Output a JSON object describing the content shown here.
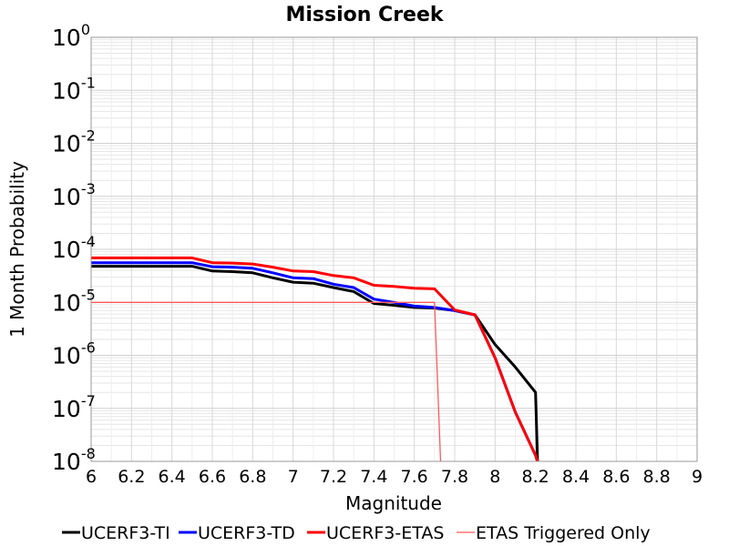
{
  "chart_data": {
    "type": "line",
    "title": "Mission Creek",
    "xlabel": "Magnitude",
    "ylabel": "1 Month Probability",
    "xlim": [
      6,
      9
    ],
    "ylim": [
      1e-08,
      1
    ],
    "yscale": "log",
    "grid": true,
    "legend_position": "bottom",
    "x_ticks": [
      "6",
      "6.2",
      "6.4",
      "6.6",
      "6.8",
      "7",
      "7.2",
      "7.4",
      "7.6",
      "7.8",
      "8",
      "8.2",
      "8.4",
      "8.6",
      "8.8",
      "9"
    ],
    "y_tick_base": "10",
    "y_tick_exponents": [
      "0",
      "-1",
      "-2",
      "-3",
      "-4",
      "-5",
      "-6",
      "-7",
      "-8"
    ],
    "series": [
      {
        "name": "UCERF3-TI",
        "color": "#000000",
        "x": [
          6.0,
          6.1,
          6.2,
          6.3,
          6.4,
          6.5,
          6.6,
          6.7,
          6.8,
          6.9,
          7.0,
          7.1,
          7.2,
          7.3,
          7.4,
          7.5,
          7.6,
          7.7,
          7.8,
          7.9,
          8.0,
          8.1,
          8.2,
          8.21
        ],
        "y": [
          4.8e-05,
          4.8e-05,
          4.8e-05,
          4.8e-05,
          4.8e-05,
          4.8e-05,
          3.9e-05,
          3.8e-05,
          3.6e-05,
          2.9e-05,
          2.4e-05,
          2.3e-05,
          1.9e-05,
          1.6e-05,
          9.5e-06,
          8.8e-06,
          8e-06,
          7.8e-06,
          7e-06,
          5.8e-06,
          1.6e-06,
          6e-07,
          2e-07,
          1e-08
        ]
      },
      {
        "name": "UCERF3-TD",
        "color": "#0000ff",
        "x": [
          6.0,
          6.1,
          6.2,
          6.3,
          6.4,
          6.5,
          6.6,
          6.7,
          6.8,
          6.9,
          7.0,
          7.1,
          7.2,
          7.3,
          7.4,
          7.5,
          7.6,
          7.7,
          7.8,
          7.9,
          8.0,
          8.1,
          8.2,
          8.21
        ],
        "y": [
          5.6e-05,
          5.6e-05,
          5.6e-05,
          5.6e-05,
          5.6e-05,
          5.6e-05,
          4.7e-05,
          4.6e-05,
          4.4e-05,
          3.6e-05,
          2.9e-05,
          2.8e-05,
          2.2e-05,
          1.9e-05,
          1.15e-05,
          1e-05,
          8.5e-06,
          8e-06,
          7e-06,
          5.8e-06,
          9e-07,
          8.5e-08,
          1.3e-08,
          1e-08
        ]
      },
      {
        "name": "UCERF3-ETAS",
        "color": "#ff0000",
        "x": [
          6.0,
          6.1,
          6.2,
          6.3,
          6.4,
          6.5,
          6.6,
          6.7,
          6.8,
          6.9,
          7.0,
          7.1,
          7.2,
          7.3,
          7.4,
          7.5,
          7.6,
          7.7,
          7.8,
          7.9,
          8.0,
          8.1,
          8.2,
          8.21
        ],
        "y": [
          6.9e-05,
          6.9e-05,
          6.9e-05,
          6.9e-05,
          6.9e-05,
          6.9e-05,
          5.6e-05,
          5.5e-05,
          5.3e-05,
          4.6e-05,
          3.9e-05,
          3.8e-05,
          3.2e-05,
          2.9e-05,
          2.1e-05,
          2e-05,
          1.85e-05,
          1.8e-05,
          7.2e-06,
          5.8e-06,
          9e-07,
          8.5e-08,
          1.3e-08,
          1e-08
        ]
      },
      {
        "name": "ETAS Triggered Only",
        "color": "#ff5a5a",
        "x": [
          6.0,
          7.7,
          7.73
        ],
        "y": [
          1e-05,
          1e-05,
          1e-08
        ]
      }
    ]
  }
}
